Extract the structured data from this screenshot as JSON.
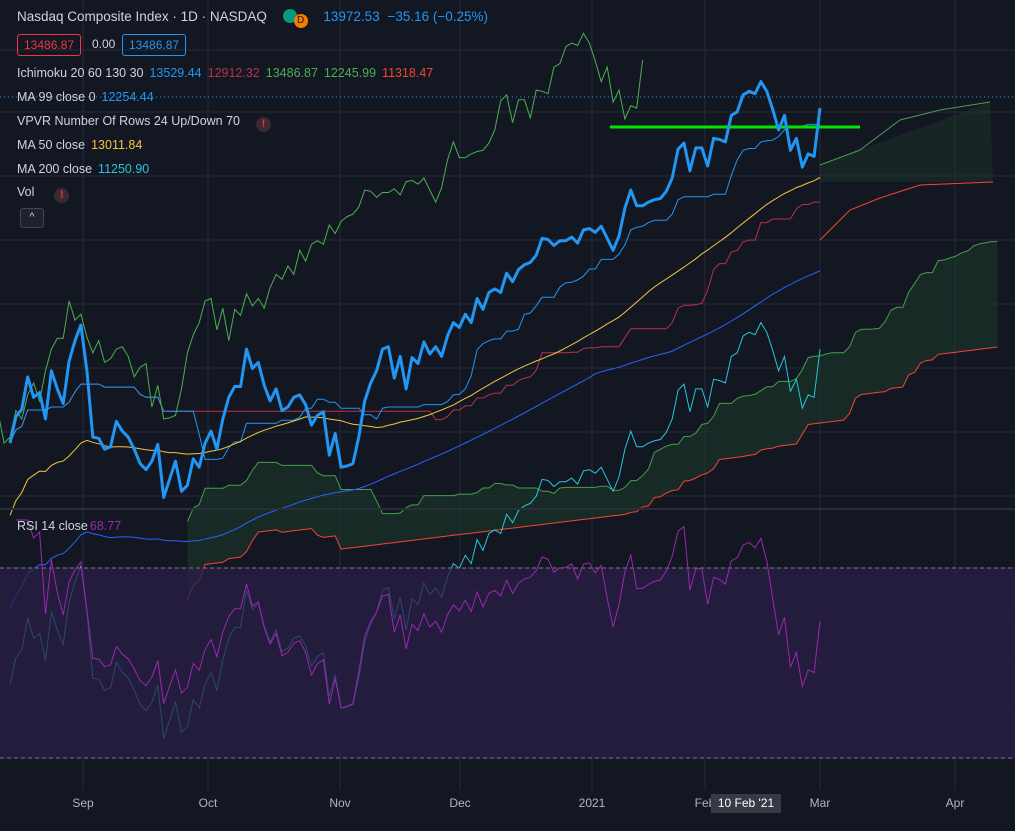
{
  "header": {
    "symbol_title": "Nasdaq Composite Index · 1D · NASDAQ",
    "badge_letter": "D",
    "last_price": "13972.53",
    "change": "−35.16 (−0.25%)"
  },
  "quote": {
    "sell": "13486.87",
    "spread": "0.00",
    "buy": "13486.87"
  },
  "indicators": {
    "ichimoku": {
      "name": "Ichimoku 20 60 130 30",
      "v1": "13529.44",
      "v2": "12912.32",
      "v3": "13486.87",
      "v4": "12245.99",
      "v5": "11318.47"
    },
    "ma99": {
      "name": "MA 99 close 0",
      "value": "12254.44"
    },
    "vpvr": {
      "name": "VPVR Number Of Rows 24 Up/Down 70",
      "warning": "!"
    },
    "ma50": {
      "name": "MA 50 close",
      "value": "13011.84"
    },
    "ma200": {
      "name": "MA 200 close",
      "value": "11250.90"
    },
    "vol": {
      "name": "Vol",
      "warning": "!"
    },
    "collapse_icon": "^"
  },
  "rsi_legend": {
    "name": "RSI 14 close",
    "value": "68.77"
  },
  "colors": {
    "background": "#131722",
    "price": "#2196f3",
    "ichimoku_conversion": "#2196f3",
    "ichimoku_base": "#b7324a",
    "ichimoku_lagging": "#4caf50",
    "span_a": "#43a047",
    "span_b": "#f44336",
    "ma99": "#2962ff",
    "ma50": "#f5c542",
    "ma200": "#26c6da",
    "support_line": "#00e600",
    "rsi": "#9c27b0",
    "rsi_band": "#2a1f47"
  },
  "chart_data": {
    "type": "line",
    "x_axis_labels": [
      "Sep",
      "Oct",
      "Nov",
      "Dec",
      "2021",
      "Feb",
      "Mar",
      "Apr"
    ],
    "crosshair_date": "10 Feb '21",
    "price_series": [
      11100,
      11320,
      11380,
      11650,
      11480,
      11520,
      11300,
      11700,
      11550,
      11430,
      11780,
      11950,
      12080,
      11700,
      11150,
      11140,
      11050,
      11070,
      11280,
      11200,
      11150,
      11050,
      10930,
      10880,
      10950,
      11090,
      10650,
      10800,
      10950,
      10700,
      10750,
      10970,
      10900,
      11100,
      11200,
      11050,
      11300,
      11480,
      11570,
      11570,
      11880,
      11720,
      11770,
      11580,
      11450,
      11550,
      11370,
      11400,
      11480,
      11500,
      11420,
      11250,
      11330,
      11360,
      11000,
      11180,
      10900,
      10910,
      10930,
      11150,
      11450,
      11600,
      11700,
      11880,
      11900,
      11640,
      11820,
      11550,
      11810,
      11760,
      11940,
      11840,
      11900,
      11820,
      11990,
      12100,
      12060,
      12170,
      12100,
      12300,
      12210,
      12350,
      12380,
      12350,
      12510,
      12440,
      12540,
      12580,
      12600,
      12660,
      12800,
      12790,
      12740,
      12780,
      12780,
      12810,
      12760,
      12870,
      12880,
      12850,
      12900,
      12800,
      12700,
      12820,
      13050,
      13200,
      13070,
      13070,
      13100,
      13120,
      13130,
      13190,
      13300,
      13540,
      13590,
      13360,
      13550,
      13550,
      13400,
      13630,
      13620,
      13600,
      13820,
      13850,
      13990,
      14020,
      14000,
      14100,
      14020,
      13870,
      13700,
      13820,
      13530,
      13630,
      13390,
      13500,
      13480,
      13880
    ]
  }
}
